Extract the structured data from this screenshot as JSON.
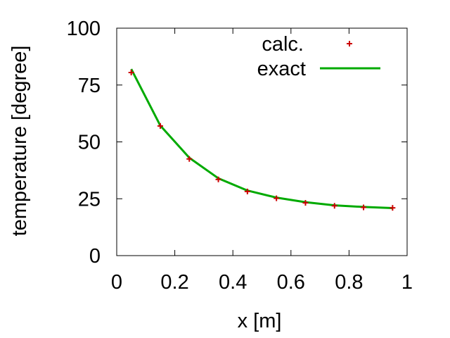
{
  "chart_data": {
    "type": "scatter",
    "xlabel": "x [m]",
    "ylabel": "temperature [degree]",
    "xlim": [
      0,
      1
    ],
    "ylim": [
      0,
      100
    ],
    "xticks": [
      "0",
      "0.2",
      "0.4",
      "0.6",
      "0.8",
      "1"
    ],
    "yticks": [
      "0",
      "25",
      "50",
      "75",
      "100"
    ],
    "grid": false,
    "legend_position": "top-right",
    "series": [
      {
        "name": "calc.",
        "kind": "points",
        "marker": "plus",
        "color": "#cc0000",
        "x": [
          0.05,
          0.15,
          0.25,
          0.35,
          0.45,
          0.55,
          0.65,
          0.75,
          0.85,
          0.95
        ],
        "y": [
          80.5,
          57.0,
          42.5,
          33.5,
          28.2,
          25.2,
          23.2,
          21.9,
          21.2,
          21.0
        ]
      },
      {
        "name": "exact",
        "kind": "line",
        "color": "#00aa00",
        "x": [
          0.05,
          0.15,
          0.25,
          0.35,
          0.45,
          0.55,
          0.65,
          0.75,
          0.85,
          0.95
        ],
        "y": [
          82.0,
          57.2,
          43.0,
          34.0,
          28.6,
          25.5,
          23.5,
          22.1,
          21.4,
          20.9
        ]
      }
    ]
  }
}
